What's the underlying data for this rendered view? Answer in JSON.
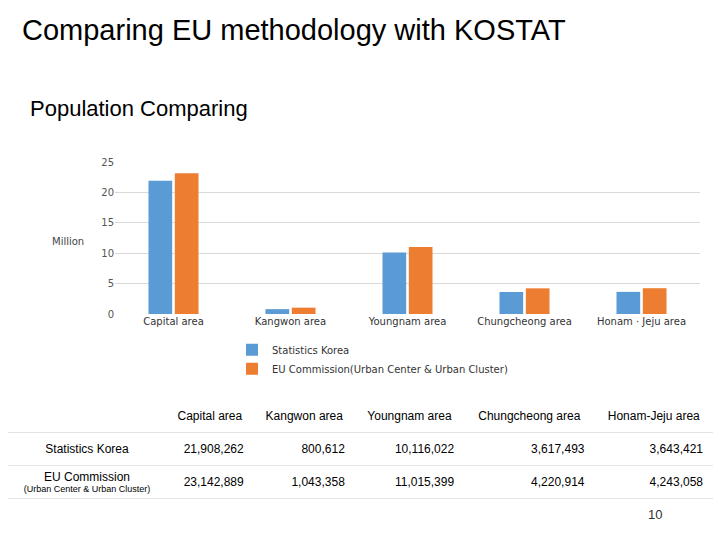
{
  "header": {
    "title": "Comparing EU methodology with KOSTAT",
    "subtitle": "Population Comparing"
  },
  "chart_data": {
    "type": "bar",
    "y_label": "Million",
    "categories": [
      "Capital area",
      "Kangwon area",
      "Youngnam area",
      "Chungcheong area",
      "Honam · Jeju area"
    ],
    "series": [
      {
        "name": "Statistics Korea",
        "color": "#5b9bd5",
        "values": [
          21.908262,
          0.800612,
          10.116022,
          3.617493,
          3.643421
        ]
      },
      {
        "name": "EU Commission(Urban Center & Urban Cluster)",
        "color": "#ed7d31",
        "values": [
          23.142889,
          1.043358,
          11.015399,
          4.220914,
          4.243058
        ]
      }
    ],
    "ylim": [
      0,
      25
    ],
    "yticks": [
      0,
      5,
      10,
      15,
      20,
      25
    ],
    "grid": true,
    "legend": "bottom"
  },
  "table": {
    "header": [
      "Capital area",
      "Kangwon area",
      "Youngnam area",
      "Chungcheong area",
      "Honam-Jeju area"
    ],
    "rows": [
      {
        "label": "Statistics Korea",
        "cells": [
          "21,908,262",
          "800,612",
          "10,116,022",
          "3,617,493",
          "3,643,421"
        ]
      },
      {
        "label": "EU Commission",
        "sublabel": "(Urban Center & Urban Cluster)",
        "cells": [
          "23,142,889",
          "1,043,358",
          "11,015,399",
          "4,220,914",
          "4,243,058"
        ]
      }
    ]
  },
  "page_number": "10"
}
